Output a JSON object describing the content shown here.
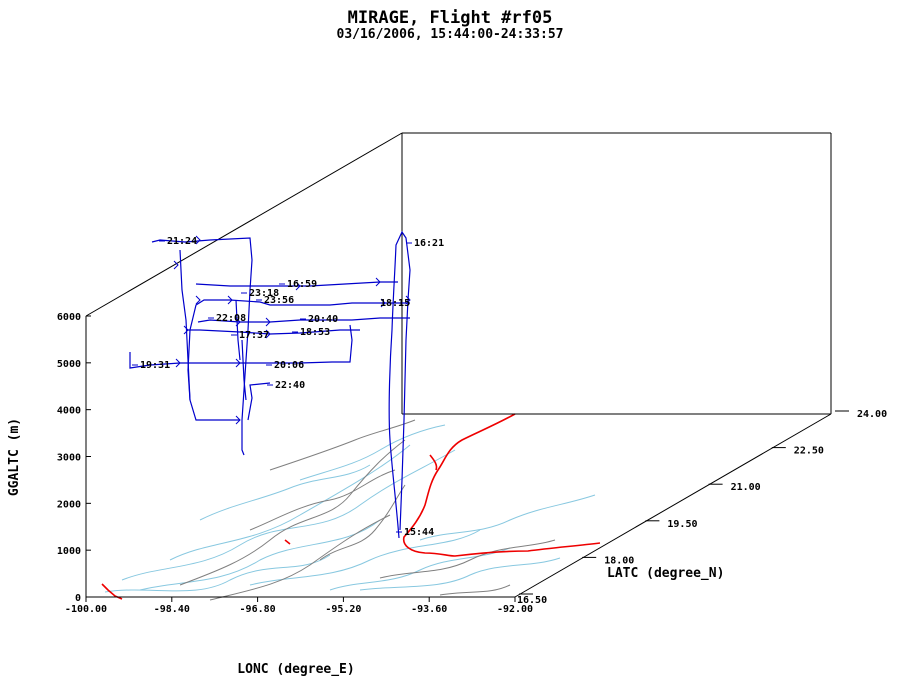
{
  "title": "MIRAGE, Flight #rf05",
  "subtitle": "03/16/2006, 15:44:00-24:33:57",
  "chart_data": {
    "type": "line",
    "projection": "3d-oblique",
    "xlabel": "LONC (degree_E)",
    "ylabel": "LATC (degree_N)",
    "zlabel": "GGALTC (m)",
    "xlim": [
      -100.0,
      -92.0
    ],
    "ylim": [
      16.5,
      24.0
    ],
    "zlim": [
      0,
      6000
    ],
    "x_ticks": [
      "-100.00",
      "-98.40",
      "-96.80",
      "-95.20",
      "-93.60",
      "-92.00"
    ],
    "y_ticks": [
      "16.50",
      "18.00",
      "19.50",
      "21.00",
      "22.50",
      "24.00"
    ],
    "z_ticks": [
      "0",
      "1000",
      "2000",
      "3000",
      "4000",
      "5000",
      "6000"
    ],
    "colors": {
      "track": "#0000cc",
      "coast": "#ee0000",
      "rivers": "#88c8e0",
      "borders": "#808080",
      "box": "#000000"
    },
    "time_labels": [
      {
        "text": "16:21"
      },
      {
        "text": "21:24"
      },
      {
        "text": "16:59"
      },
      {
        "text": "23:18"
      },
      {
        "text": "23:56"
      },
      {
        "text": "18:15"
      },
      {
        "text": "22:08"
      },
      {
        "text": "20:40"
      },
      {
        "text": "17:37"
      },
      {
        "text": "18:53"
      },
      {
        "text": "19:31"
      },
      {
        "text": "20:06"
      },
      {
        "text": "22:40"
      },
      {
        "text": "15:44"
      }
    ]
  }
}
